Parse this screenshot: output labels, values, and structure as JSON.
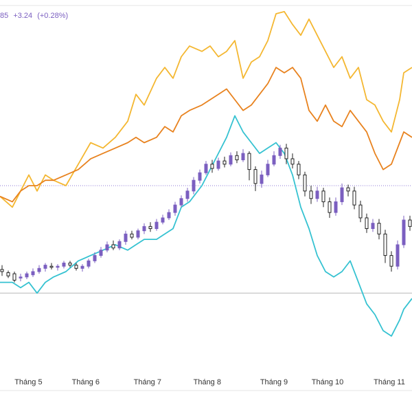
{
  "legend": {
    "partial_price": "85",
    "change": "+3.24",
    "change_pct": "(+0.28%)"
  },
  "colors": {
    "gold": "#f4b731",
    "orange": "#e8821e",
    "cyan": "#35c2d1",
    "candle_up": "#7b5fc0",
    "candle_down": "#222222",
    "dotted_line": "#8c7ad6",
    "baseline": "#b8b8b8"
  },
  "chart_data": {
    "type": "line",
    "xlabel": "",
    "ylabel": "",
    "x_ticks": [
      {
        "label": "Tháng 5",
        "t": 0.069
      },
      {
        "label": "Tháng 6",
        "t": 0.208
      },
      {
        "label": "Tháng 7",
        "t": 0.358
      },
      {
        "label": "Tháng 8",
        "t": 0.503
      },
      {
        "label": "Tháng 9",
        "t": 0.665
      },
      {
        "label": "Tháng 10",
        "t": 0.795
      },
      {
        "label": "Tháng 11",
        "t": 0.945
      }
    ],
    "ylim": [
      -6,
      26
    ],
    "reference_levels": {
      "dotted": 10,
      "baseline": 0
    },
    "grid": false,
    "series": [
      {
        "key": "gold",
        "points": [
          [
            0.0,
            9
          ],
          [
            0.03,
            8
          ],
          [
            0.05,
            9.5
          ],
          [
            0.07,
            11
          ],
          [
            0.09,
            9.5
          ],
          [
            0.11,
            11
          ],
          [
            0.13,
            10.5
          ],
          [
            0.16,
            10
          ],
          [
            0.19,
            12
          ],
          [
            0.22,
            14
          ],
          [
            0.25,
            13.5
          ],
          [
            0.28,
            14.5
          ],
          [
            0.31,
            16
          ],
          [
            0.33,
            18.5
          ],
          [
            0.35,
            17.5
          ],
          [
            0.38,
            20
          ],
          [
            0.4,
            21
          ],
          [
            0.42,
            20
          ],
          [
            0.44,
            22
          ],
          [
            0.46,
            23
          ],
          [
            0.49,
            22.5
          ],
          [
            0.51,
            23
          ],
          [
            0.53,
            22
          ],
          [
            0.55,
            22.5
          ],
          [
            0.57,
            23.5
          ],
          [
            0.59,
            20
          ],
          [
            0.61,
            21.5
          ],
          [
            0.63,
            22
          ],
          [
            0.65,
            23.5
          ],
          [
            0.67,
            26
          ],
          [
            0.69,
            26.2
          ],
          [
            0.71,
            25
          ],
          [
            0.73,
            24
          ],
          [
            0.75,
            25.5
          ],
          [
            0.77,
            24
          ],
          [
            0.79,
            22.5
          ],
          [
            0.81,
            21
          ],
          [
            0.83,
            22
          ],
          [
            0.85,
            20
          ],
          [
            0.87,
            21
          ],
          [
            0.89,
            18
          ],
          [
            0.91,
            17.5
          ],
          [
            0.93,
            16
          ],
          [
            0.95,
            15
          ],
          [
            0.97,
            18
          ],
          [
            0.98,
            20.5
          ],
          [
            1.0,
            21
          ]
        ]
      },
      {
        "key": "orange",
        "points": [
          [
            0.0,
            9
          ],
          [
            0.03,
            8.5
          ],
          [
            0.05,
            9.5
          ],
          [
            0.07,
            10
          ],
          [
            0.09,
            10
          ],
          [
            0.11,
            10.5
          ],
          [
            0.13,
            10.5
          ],
          [
            0.16,
            11
          ],
          [
            0.19,
            11.5
          ],
          [
            0.22,
            12.5
          ],
          [
            0.25,
            13
          ],
          [
            0.28,
            13.5
          ],
          [
            0.31,
            14
          ],
          [
            0.33,
            14.5
          ],
          [
            0.35,
            14
          ],
          [
            0.38,
            14.5
          ],
          [
            0.4,
            15.5
          ],
          [
            0.42,
            15
          ],
          [
            0.44,
            16.5
          ],
          [
            0.46,
            17
          ],
          [
            0.49,
            17.5
          ],
          [
            0.51,
            18
          ],
          [
            0.53,
            18.5
          ],
          [
            0.55,
            19
          ],
          [
            0.57,
            18
          ],
          [
            0.59,
            17
          ],
          [
            0.61,
            17.5
          ],
          [
            0.63,
            18.5
          ],
          [
            0.65,
            19.5
          ],
          [
            0.67,
            21
          ],
          [
            0.69,
            20.5
          ],
          [
            0.71,
            21
          ],
          [
            0.73,
            20
          ],
          [
            0.75,
            17
          ],
          [
            0.77,
            16
          ],
          [
            0.79,
            17.5
          ],
          [
            0.81,
            16
          ],
          [
            0.83,
            15.5
          ],
          [
            0.85,
            17
          ],
          [
            0.87,
            16
          ],
          [
            0.89,
            15
          ],
          [
            0.91,
            13
          ],
          [
            0.93,
            11.5
          ],
          [
            0.95,
            12
          ],
          [
            0.97,
            14
          ],
          [
            0.98,
            15
          ],
          [
            1.0,
            14.5
          ]
        ]
      },
      {
        "key": "cyan",
        "points": [
          [
            0.0,
            1
          ],
          [
            0.03,
            1
          ],
          [
            0.05,
            0.5
          ],
          [
            0.07,
            1
          ],
          [
            0.09,
            0
          ],
          [
            0.11,
            1
          ],
          [
            0.13,
            1.5
          ],
          [
            0.16,
            2
          ],
          [
            0.19,
            3
          ],
          [
            0.22,
            3.5
          ],
          [
            0.25,
            4
          ],
          [
            0.28,
            4.5
          ],
          [
            0.31,
            4
          ],
          [
            0.33,
            4.5
          ],
          [
            0.35,
            5
          ],
          [
            0.38,
            5
          ],
          [
            0.4,
            5.5
          ],
          [
            0.42,
            6
          ],
          [
            0.44,
            8
          ],
          [
            0.46,
            8.5
          ],
          [
            0.49,
            10
          ],
          [
            0.51,
            11.5
          ],
          [
            0.53,
            13
          ],
          [
            0.55,
            14.5
          ],
          [
            0.57,
            16.5
          ],
          [
            0.59,
            15
          ],
          [
            0.61,
            14
          ],
          [
            0.63,
            13
          ],
          [
            0.65,
            13.5
          ],
          [
            0.67,
            14
          ],
          [
            0.69,
            13
          ],
          [
            0.71,
            11
          ],
          [
            0.73,
            8
          ],
          [
            0.75,
            6
          ],
          [
            0.77,
            3.5
          ],
          [
            0.79,
            2
          ],
          [
            0.81,
            1.5
          ],
          [
            0.83,
            2
          ],
          [
            0.85,
            3
          ],
          [
            0.87,
            1
          ],
          [
            0.89,
            -1
          ],
          [
            0.91,
            -2
          ],
          [
            0.93,
            -3.5
          ],
          [
            0.95,
            -4
          ],
          [
            0.97,
            -2.5
          ],
          [
            0.98,
            -1.5
          ],
          [
            1.0,
            -0.5
          ]
        ]
      }
    ],
    "candles": [
      [
        0.005,
        2.2,
        2.0,
        2.6,
        1.6
      ],
      [
        0.02,
        1.9,
        1.6,
        2.1,
        1.4
      ],
      [
        0.035,
        1.8,
        1.2,
        2.0,
        1.0
      ],
      [
        0.05,
        1.4,
        1.5,
        1.8,
        1.1
      ],
      [
        0.065,
        1.5,
        1.8,
        2.0,
        1.3
      ],
      [
        0.08,
        1.7,
        2.0,
        2.3,
        1.5
      ],
      [
        0.095,
        2.0,
        2.3,
        2.6,
        1.8
      ],
      [
        0.11,
        2.3,
        2.6,
        2.8,
        2.0
      ],
      [
        0.125,
        2.5,
        2.4,
        2.8,
        2.2
      ],
      [
        0.14,
        2.4,
        2.5,
        2.7,
        2.1
      ],
      [
        0.155,
        2.5,
        2.8,
        3.0,
        2.3
      ],
      [
        0.17,
        2.8,
        2.6,
        3.0,
        2.4
      ],
      [
        0.185,
        2.6,
        2.3,
        2.8,
        2.1
      ],
      [
        0.2,
        2.3,
        2.5,
        2.7,
        2.0
      ],
      [
        0.215,
        2.5,
        3.0,
        3.2,
        2.3
      ],
      [
        0.23,
        3.0,
        3.5,
        3.8,
        2.8
      ],
      [
        0.245,
        3.5,
        4.0,
        4.3,
        3.3
      ],
      [
        0.26,
        4.0,
        4.5,
        4.8,
        3.8
      ],
      [
        0.275,
        4.5,
        4.2,
        4.9,
        4.0
      ],
      [
        0.29,
        4.2,
        4.8,
        5.0,
        4.0
      ],
      [
        0.305,
        4.8,
        5.5,
        5.8,
        4.5
      ],
      [
        0.32,
        5.5,
        5.2,
        5.8,
        5.0
      ],
      [
        0.335,
        5.2,
        5.8,
        6.0,
        5.0
      ],
      [
        0.35,
        5.8,
        6.2,
        6.5,
        5.5
      ],
      [
        0.365,
        6.2,
        6.0,
        6.6,
        5.7
      ],
      [
        0.38,
        6.0,
        6.6,
        6.9,
        5.8
      ],
      [
        0.395,
        6.6,
        7.0,
        7.3,
        6.4
      ],
      [
        0.41,
        7.0,
        7.5,
        7.8,
        6.8
      ],
      [
        0.425,
        7.5,
        8.2,
        8.5,
        7.2
      ],
      [
        0.44,
        8.2,
        8.8,
        9.1,
        8.0
      ],
      [
        0.455,
        8.8,
        9.5,
        9.8,
        8.5
      ],
      [
        0.47,
        9.5,
        10.5,
        10.8,
        9.2
      ],
      [
        0.485,
        10.5,
        11.2,
        11.5,
        10.2
      ],
      [
        0.5,
        11.2,
        12.0,
        12.3,
        11.0
      ],
      [
        0.515,
        12.0,
        11.6,
        12.4,
        11.2
      ],
      [
        0.53,
        11.6,
        12.3,
        12.6,
        11.4
      ],
      [
        0.545,
        12.3,
        12.0,
        12.7,
        11.7
      ],
      [
        0.56,
        12.0,
        12.8,
        13.1,
        11.8
      ],
      [
        0.575,
        12.8,
        12.4,
        13.2,
        12.1
      ],
      [
        0.59,
        12.4,
        13.0,
        13.4,
        12.2
      ],
      [
        0.605,
        13.0,
        11.5,
        13.2,
        10.5
      ],
      [
        0.62,
        11.5,
        10.2,
        11.8,
        9.5
      ],
      [
        0.635,
        10.2,
        11.0,
        11.4,
        9.8
      ],
      [
        0.65,
        11.0,
        12.0,
        12.4,
        10.8
      ],
      [
        0.665,
        12.0,
        12.8,
        13.2,
        11.8
      ],
      [
        0.68,
        12.8,
        13.5,
        13.8,
        12.5
      ],
      [
        0.695,
        13.5,
        12.5,
        13.9,
        12.0
      ],
      [
        0.71,
        12.5,
        12.0,
        13.0,
        11.6
      ],
      [
        0.725,
        12.0,
        11.0,
        12.3,
        10.6
      ],
      [
        0.74,
        11.0,
        9.5,
        11.3,
        9.0
      ],
      [
        0.755,
        9.5,
        8.8,
        10.0,
        8.3
      ],
      [
        0.77,
        8.8,
        9.5,
        9.9,
        8.5
      ],
      [
        0.785,
        9.5,
        8.5,
        9.8,
        8.0
      ],
      [
        0.8,
        8.5,
        7.5,
        8.9,
        7.0
      ],
      [
        0.815,
        7.5,
        8.5,
        8.9,
        7.2
      ],
      [
        0.83,
        8.5,
        9.8,
        10.2,
        8.2
      ],
      [
        0.845,
        9.8,
        9.5,
        10.1,
        9.0
      ],
      [
        0.86,
        9.5,
        8.2,
        9.9,
        7.8
      ],
      [
        0.875,
        8.2,
        7.0,
        8.6,
        6.6
      ],
      [
        0.89,
        7.0,
        6.0,
        7.4,
        5.6
      ],
      [
        0.905,
        6.0,
        6.5,
        6.9,
        5.7
      ],
      [
        0.92,
        6.5,
        5.5,
        6.9,
        5.0
      ],
      [
        0.935,
        5.5,
        3.5,
        5.9,
        2.8
      ],
      [
        0.95,
        3.5,
        2.5,
        3.9,
        2.0
      ],
      [
        0.965,
        2.5,
        4.5,
        4.9,
        2.2
      ],
      [
        0.98,
        4.5,
        6.8,
        7.2,
        4.2
      ],
      [
        0.995,
        6.8,
        6.2,
        7.2,
        5.8
      ]
    ]
  }
}
